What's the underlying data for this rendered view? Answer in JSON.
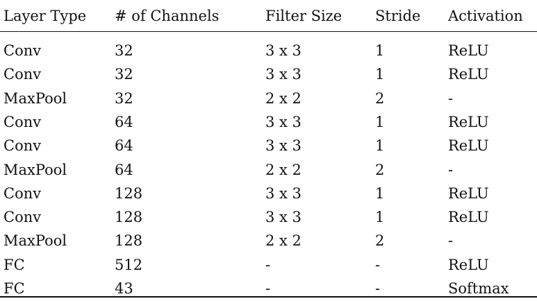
{
  "table": {
    "headers": [
      "Layer Type",
      "# of Channels",
      "Filter Size",
      "Stride",
      "Activation"
    ],
    "rows": [
      [
        "Conv",
        "32",
        "3 x 3",
        "1",
        "ReLU"
      ],
      [
        "Conv",
        "32",
        "3 x 3",
        "1",
        "ReLU"
      ],
      [
        "MaxPool",
        "32",
        "2 x 2",
        "2",
        "-"
      ],
      [
        "Conv",
        "64",
        "3 x 3",
        "1",
        "ReLU"
      ],
      [
        "Conv",
        "64",
        "3 x 3",
        "1",
        "ReLU"
      ],
      [
        "MaxPool",
        "64",
        "2 x 2",
        "2",
        "-"
      ],
      [
        "Conv",
        "128",
        "3 x 3",
        "1",
        "ReLU"
      ],
      [
        "Conv",
        "128",
        "3 x 3",
        "1",
        "ReLU"
      ],
      [
        "MaxPool",
        "128",
        "2 x 2",
        "2",
        "-"
      ],
      [
        "FC",
        "512",
        "-",
        "-",
        "ReLU"
      ],
      [
        "FC",
        "43",
        "-",
        "-",
        "Softmax"
      ]
    ]
  }
}
